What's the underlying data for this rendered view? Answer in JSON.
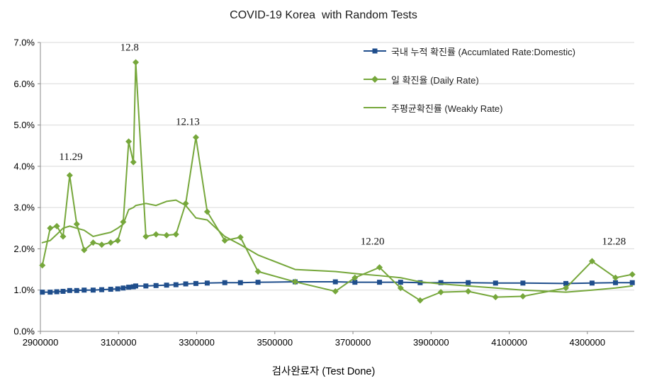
{
  "title": "COVID-19 Korea  with Random Tests",
  "chart_data": {
    "type": "line",
    "title": "COVID-19 Korea  with Random Tests",
    "xlabel": "검사완료자 (Test Done)",
    "ylabel": "",
    "xlim": [
      2900000,
      4420000
    ],
    "ylim": [
      0,
      7
    ],
    "grid": "horizontal",
    "legend_position": "top-right",
    "y_ticks": [
      {
        "value": 0,
        "label": "0.0%"
      },
      {
        "value": 1,
        "label": "1.0%"
      },
      {
        "value": 2,
        "label": "2.0%"
      },
      {
        "value": 3,
        "label": "3.0%"
      },
      {
        "value": 4,
        "label": "4.0%"
      },
      {
        "value": 5,
        "label": "5.0%"
      },
      {
        "value": 6,
        "label": "6.0%"
      },
      {
        "value": 7,
        "label": "7.0%"
      }
    ],
    "x_ticks": [
      {
        "value": 2900000,
        "label": "2900000"
      },
      {
        "value": 3100000,
        "label": "3100000"
      },
      {
        "value": 3300000,
        "label": "3300000"
      },
      {
        "value": 3500000,
        "label": "3500000"
      },
      {
        "value": 3700000,
        "label": "3700000"
      },
      {
        "value": 3900000,
        "label": "3900000"
      },
      {
        "value": 4100000,
        "label": "4100000"
      },
      {
        "value": 4300000,
        "label": "4300000"
      }
    ],
    "x": [
      2905000,
      2925000,
      2942000,
      2958000,
      2975000,
      2993000,
      3012000,
      3035000,
      3057000,
      3080000,
      3098000,
      3112000,
      3126000,
      3138000,
      3144000,
      3170000,
      3196000,
      3223000,
      3247000,
      3272000,
      3298000,
      3327000,
      3372000,
      3412000,
      3457000,
      3552000,
      3655000,
      3705000,
      3768000,
      3822000,
      3872000,
      3925000,
      3995000,
      4065000,
      4135000,
      4245000,
      4312000,
      4372000,
      4415000
    ],
    "series": [
      {
        "name": "국내 누적 확진률 (Accumlated Rate:Domestic)",
        "color": "#1F4E8C",
        "marker": "square",
        "values": [
          0.95,
          0.95,
          0.96,
          0.97,
          0.99,
          0.99,
          1.0,
          1.0,
          1.01,
          1.02,
          1.03,
          1.05,
          1.07,
          1.08,
          1.1,
          1.1,
          1.11,
          1.12,
          1.13,
          1.15,
          1.16,
          1.17,
          1.18,
          1.18,
          1.19,
          1.2,
          1.2,
          1.19,
          1.19,
          1.19,
          1.18,
          1.18,
          1.18,
          1.17,
          1.17,
          1.16,
          1.17,
          1.18,
          1.18
        ]
      },
      {
        "name": "일 확진율 (Daily Rate)",
        "color": "#76A73B",
        "marker": "diamond",
        "values": [
          1.6,
          2.5,
          2.55,
          2.3,
          3.78,
          2.6,
          1.97,
          2.15,
          2.1,
          2.15,
          2.2,
          2.65,
          4.6,
          4.1,
          6.52,
          2.3,
          2.35,
          2.33,
          2.35,
          3.1,
          4.7,
          2.9,
          2.2,
          2.28,
          1.45,
          1.2,
          0.97,
          1.3,
          1.55,
          1.05,
          0.75,
          0.95,
          0.97,
          0.83,
          0.85,
          1.05,
          1.7,
          1.3,
          1.38
        ]
      },
      {
        "name": "주평균확진률 (Weakly Rate)",
        "color": "#76A73B",
        "marker": "none",
        "values": [
          2.15,
          2.2,
          2.35,
          2.5,
          2.55,
          2.5,
          2.45,
          2.3,
          2.35,
          2.4,
          2.5,
          2.6,
          2.95,
          3.0,
          3.05,
          3.1,
          3.05,
          3.15,
          3.18,
          3.05,
          2.75,
          2.7,
          2.3,
          2.1,
          1.85,
          1.5,
          1.45,
          1.4,
          1.35,
          1.3,
          1.2,
          1.15,
          1.1,
          1.05,
          1.0,
          0.95,
          1.0,
          1.05,
          1.1
        ]
      }
    ],
    "annotations": [
      {
        "label": "11.29",
        "x": 2978000,
        "y": 4.15
      },
      {
        "label": "12.8",
        "x": 3128000,
        "y": 6.8
      },
      {
        "label": "12.13",
        "x": 3277000,
        "y": 5.0
      },
      {
        "label": "12.20",
        "x": 3750000,
        "y": 2.1
      },
      {
        "label": "12.28",
        "x": 4368000,
        "y": 2.1
      }
    ],
    "colors": {
      "accumulated_series": "#1F4E8C",
      "daily_series": "#76A73B",
      "weekly_series": "#76A73B",
      "gridline": "#d9d9d9",
      "axis": "#8a8a8a",
      "text": "#1a1a1a"
    }
  }
}
